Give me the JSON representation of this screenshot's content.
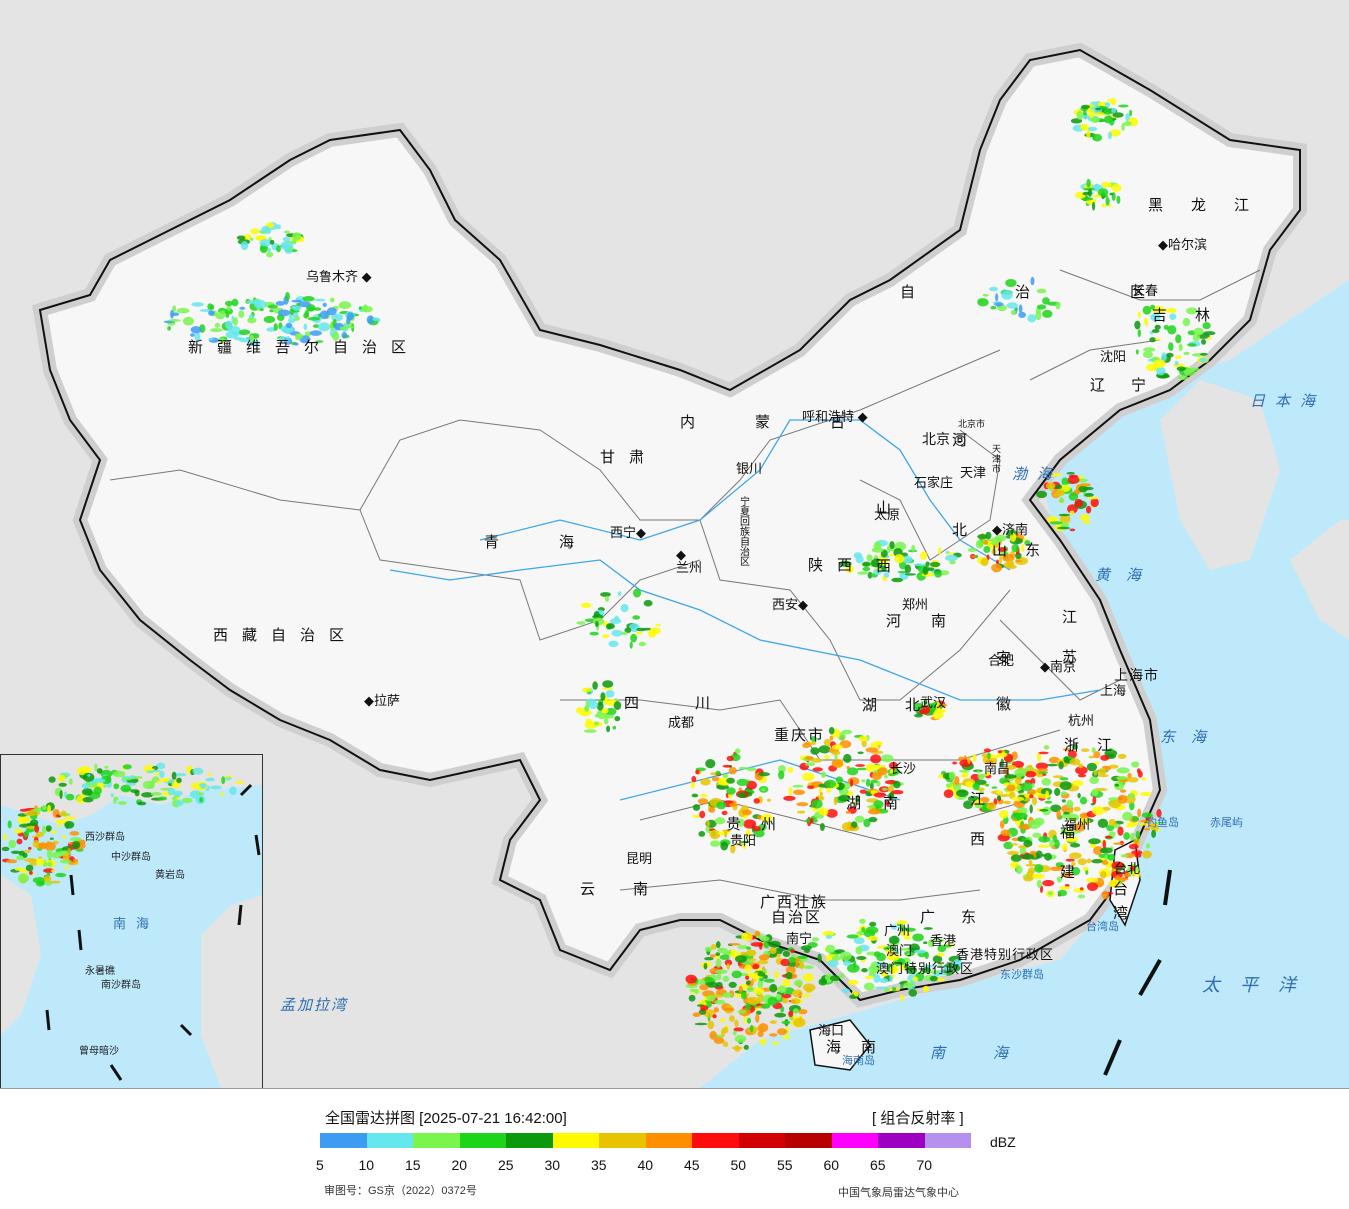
{
  "legend": {
    "title": "全国雷达拼图 [2025-07-21 16:42:00]",
    "product": "[ 组合反射率 ]",
    "unit": "dBZ",
    "approval": "审图号：GS京（2022）0372号",
    "source": "中国气象局雷达气象中心",
    "ticks": [
      "5",
      "10",
      "15",
      "20",
      "25",
      "30",
      "35",
      "40",
      "45",
      "50",
      "55",
      "60",
      "65",
      "70"
    ],
    "colors": [
      "#3d9cf2",
      "#66e6ef",
      "#79f54e",
      "#1ed41b",
      "#0c990c",
      "#fffa00",
      "#e8c400",
      "#ff8f00",
      "#ff0d0d",
      "#d20000",
      "#b80000",
      "#ff00ff",
      "#9d00c0",
      "#b491ef"
    ]
  },
  "provinces": {
    "xinjiang": "新疆维吾尔自治区",
    "xizang": "西藏自治区",
    "qinghai": "青海",
    "gansu": "甘肃",
    "neimenggu_a": "内蒙古",
    "neimenggu_b": "自治区",
    "ningxia": "宁夏回族自治区",
    "shaanxi": "陕西",
    "shanxi": "山西",
    "hebei": "河北",
    "henan": "河南",
    "shandong": "山东",
    "jiangsu": "江苏",
    "anhui": "安徽",
    "hubei": "湖北",
    "hunan": "湖南",
    "sichuan": "四川",
    "chongqing": "重庆市",
    "guizhou": "贵州",
    "yunnan": "云南",
    "guangxi_a": "广西壮族",
    "guangxi_b": "自治区",
    "guangdong": "广东",
    "jiangxi": "江西",
    "fujian": "福建",
    "zhejiang": "浙江",
    "heilongjiang": "黑龙江",
    "jilin": "吉林",
    "liaoning": "辽宁",
    "hainan": "海南",
    "taiwan": "台湾",
    "shanghai": "上海市",
    "hongkong": "香港特别行政区",
    "macao": "澳门特别行政区"
  },
  "cities": {
    "urumqi": "乌鲁木齐",
    "lhasa": "拉萨",
    "xining": "西宁",
    "lanzhou": "兰州",
    "yinchuan": "银川",
    "hohhot": "呼和浩特",
    "beijing": "北京",
    "tianjin": "天津",
    "shijiazhuang": "石家庄",
    "taiyuan": "太原",
    "jinan": "济南",
    "zhengzhou": "郑州",
    "xian": "西安",
    "hefei": "合肥",
    "nanjing": "南京",
    "shanghai": "上海",
    "hangzhou": "杭州",
    "wuhan": "武汉",
    "changsha": "长沙",
    "nanchang": "南昌",
    "fuzhou": "福州",
    "taibei": "台北",
    "chengdu": "成都",
    "guiyang": "贵阳",
    "kunming": "昆明",
    "nanning": "南宁",
    "guangzhou": "广州",
    "hongkong": "香港",
    "macao": "澳门",
    "haikou": "海口",
    "harbin": "哈尔滨",
    "changchun": "长春",
    "shenyang": "沈阳",
    "beijing_city": "北京市",
    "tianjin_city": "天津市"
  },
  "seas": {
    "bohai": "渤海",
    "huanghai": "黄海",
    "donghai": "东海",
    "nanhai": "南海",
    "taipingyang": "太平洋",
    "ribenhai": "日本海",
    "mengjialawan": "孟加拉湾"
  },
  "islands": {
    "diaoyu": "钓鱼岛",
    "chiwei": "赤尾屿",
    "hainandao": "海南岛",
    "taiwandao": "台湾岛",
    "dongsha": "东沙群岛"
  },
  "inset": {
    "xisha": "西沙群岛",
    "zhongsha": "中沙群岛",
    "huangyan": "黄岩岛",
    "nansha": "南沙群岛",
    "zengmu": "曾母暗沙",
    "yongshu": "永暑礁",
    "nanhai": "南海"
  }
}
